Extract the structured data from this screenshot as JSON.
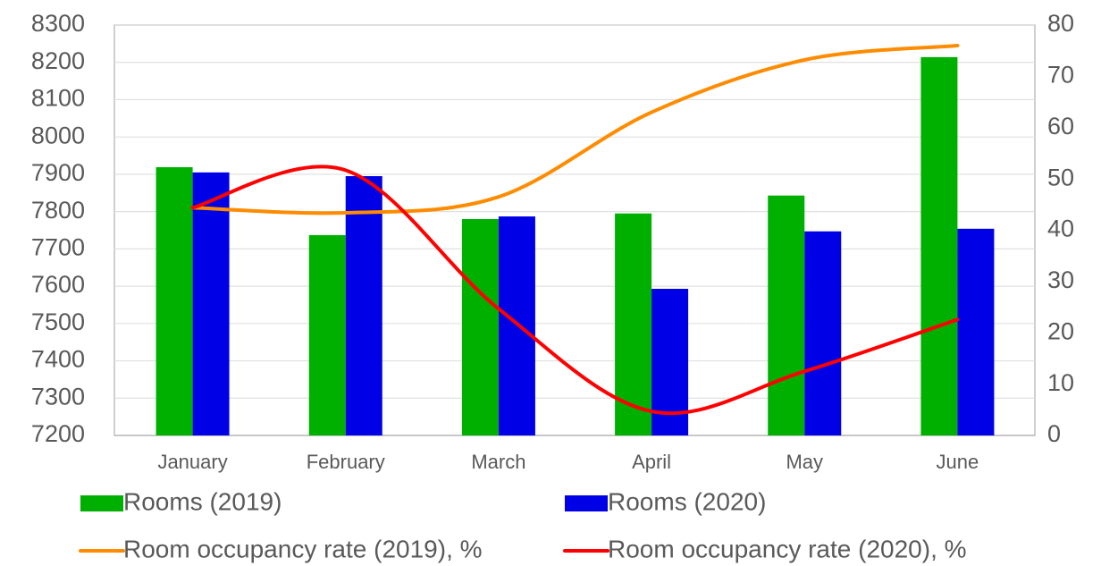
{
  "chart_data": {
    "type": "bar-line",
    "categories": [
      "January",
      "February",
      "March",
      "April",
      "May",
      "June"
    ],
    "series": [
      {
        "name": "Rooms (2019)",
        "color": "#00b000",
        "type": "bar",
        "values": [
          7919,
          7737,
          7780,
          7795,
          7843,
          8214
        ]
      },
      {
        "name": "Rooms (2020)",
        "color": "#0000e6",
        "type": "bar",
        "values": [
          7905,
          7895,
          7787,
          7593,
          7747,
          7754
        ]
      },
      {
        "name": "Room occupancy rate (2019), %",
        "color": "#ff8c00",
        "type": "line",
        "axis": "y2",
        "values": [
          44.4,
          43.4,
          46.5,
          63,
          73.2,
          76
        ]
      },
      {
        "name": "Room occupancy rate (2020), %",
        "color": "#ff0000",
        "type": "line",
        "axis": "y2",
        "values": [
          44.4,
          51.7,
          24.7,
          4.7,
          12.5,
          22.6
        ]
      }
    ],
    "ylim": [
      7200,
      8300
    ],
    "yticks": [
      7200,
      7300,
      7400,
      7500,
      7600,
      7700,
      7800,
      7900,
      8000,
      8100,
      8200,
      8300
    ],
    "y2lim": [
      0,
      80
    ],
    "y2ticks": [
      0,
      10,
      20,
      30,
      40,
      50,
      60,
      70,
      80
    ],
    "grid": true,
    "legend": "bottom"
  }
}
